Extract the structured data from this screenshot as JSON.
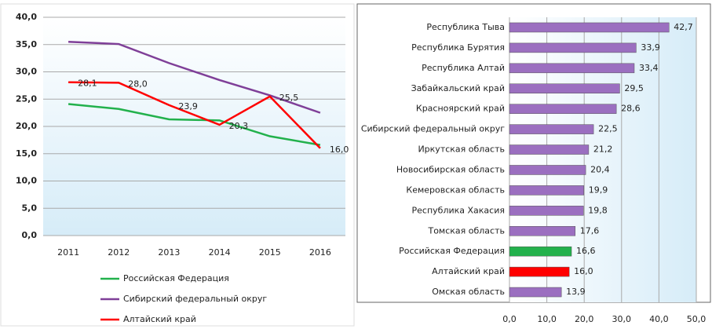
{
  "chart_data": [
    {
      "type": "line",
      "categories": [
        "2011",
        "2012",
        "2013",
        "2014",
        "2015",
        "2016"
      ],
      "ylim": [
        0,
        40
      ],
      "yticks": [
        {
          "value": 0,
          "label": "0,0"
        },
        {
          "value": 5,
          "label": "5,0"
        },
        {
          "value": 10,
          "label": "10,0"
        },
        {
          "value": 15,
          "label": "15,0"
        },
        {
          "value": 20,
          "label": "20,0"
        },
        {
          "value": 25,
          "label": "25,0"
        },
        {
          "value": 30,
          "label": "30,0"
        },
        {
          "value": 35,
          "label": "35,0"
        },
        {
          "value": 40,
          "label": "40,0"
        }
      ],
      "grid": true,
      "series": [
        {
          "name": "Российская Федерация",
          "color": "#22b14c",
          "values": [
            24.1,
            23.2,
            21.3,
            21.1,
            18.2,
            16.6
          ]
        },
        {
          "name": "Сибирский федеральный округ",
          "color": "#7f3f98",
          "values": [
            35.5,
            35.1,
            31.6,
            28.5,
            25.7,
            22.5
          ]
        },
        {
          "name": "Алтайский край",
          "color": "#ff0000",
          "values": [
            28.1,
            28.0,
            23.9,
            20.3,
            25.5,
            16.0
          ],
          "value_labels": [
            "28,1",
            "28,0",
            "23,9",
            "20,3",
            "25,5",
            "16,0"
          ]
        }
      ]
    },
    {
      "type": "barh",
      "categories": [
        "Республика Тыва",
        "Республика Бурятия",
        "Республика Алтай",
        "Забайкальский край",
        "Красноярский край",
        "Сибирский федеральный округ",
        "Иркутская область",
        "Новосибирская область",
        "Кемеровская область",
        "Республика Хакасия",
        "Томская область",
        "Российская Федерация",
        "Алтайский край",
        "Омская область"
      ],
      "values": [
        42.7,
        33.9,
        33.4,
        29.5,
        28.6,
        22.5,
        21.2,
        20.4,
        19.9,
        19.8,
        17.6,
        16.6,
        16.0,
        13.9
      ],
      "value_labels": [
        "42,7",
        "33,9",
        "33,4",
        "29,5",
        "28,6",
        "22,5",
        "21,2",
        "20,4",
        "19,9",
        "19,8",
        "17,6",
        "16,6",
        "16,0",
        "13,9"
      ],
      "colors": [
        "#9b6fc0",
        "#9b6fc0",
        "#9b6fc0",
        "#9b6fc0",
        "#9b6fc0",
        "#9b6fc0",
        "#9b6fc0",
        "#9b6fc0",
        "#9b6fc0",
        "#9b6fc0",
        "#9b6fc0",
        "#22b14c",
        "#ff0000",
        "#9b6fc0"
      ],
      "xlim": [
        0,
        50
      ],
      "xticks": [
        {
          "value": 0,
          "label": "0,0"
        },
        {
          "value": 10,
          "label": "10,0"
        },
        {
          "value": 20,
          "label": "20,0"
        },
        {
          "value": 30,
          "label": "30,0"
        },
        {
          "value": 40,
          "label": "40,0"
        },
        {
          "value": 50,
          "label": "50,0"
        }
      ],
      "grid": true
    }
  ]
}
